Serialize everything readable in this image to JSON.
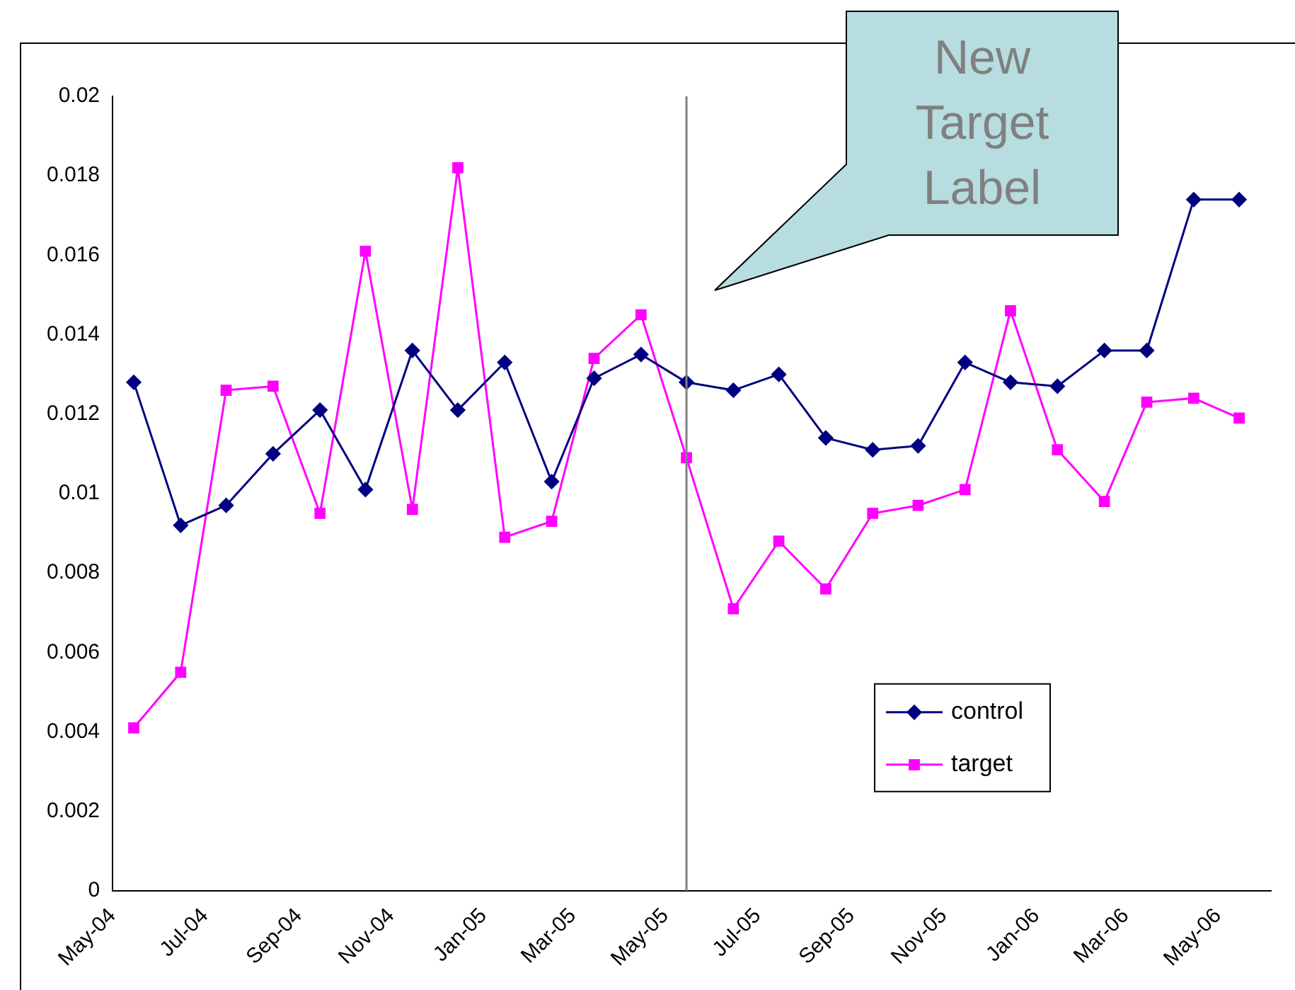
{
  "chart_data": {
    "type": "line",
    "x": [
      "2004-05-15",
      "2004-06-15",
      "2004-07-15",
      "2004-08-15",
      "2004-09-15",
      "2004-10-15",
      "2004-11-15",
      "2004-12-15",
      "2005-01-15",
      "2005-02-15",
      "2005-03-15",
      "2005-04-15",
      "2005-05-15",
      "2005-06-15",
      "2005-07-15",
      "2005-08-15",
      "2005-09-15",
      "2005-10-15",
      "2005-11-15",
      "2005-12-15",
      "2006-01-15",
      "2006-02-15",
      "2006-03-15",
      "2006-04-15",
      "2006-05-15"
    ],
    "series": [
      {
        "name": "control",
        "color": "#000080",
        "marker": "diamond",
        "values": [
          0.0128,
          0.0092,
          0.0097,
          0.011,
          0.0121,
          0.0101,
          0.0136,
          0.0121,
          0.0133,
          0.0103,
          0.0129,
          0.0135,
          0.0128,
          0.0126,
          0.013,
          0.0114,
          0.0111,
          0.0112,
          0.0133,
          0.0128,
          0.0127,
          0.0136,
          0.0136,
          0.0174,
          0.0174
        ]
      },
      {
        "name": "target",
        "color": "#ff00ff",
        "marker": "square",
        "values": [
          0.0041,
          0.0055,
          0.0126,
          0.0127,
          0.0095,
          0.0161,
          0.0096,
          0.0182,
          0.0089,
          0.0093,
          0.0134,
          0.0145,
          0.0109,
          0.0071,
          0.0088,
          0.0076,
          0.0095,
          0.0097,
          0.0101,
          0.0146,
          0.0111,
          0.0098,
          0.0123,
          0.0124,
          0.0119
        ]
      }
    ],
    "xlim": [
      "2004-05-01",
      "2006-06-05"
    ],
    "xticks": [
      {
        "value": "2004-05-01",
        "label": "May-04"
      },
      {
        "value": "2004-07-01",
        "label": "Jul-04"
      },
      {
        "value": "2004-09-01",
        "label": "Sep-04"
      },
      {
        "value": "2004-11-01",
        "label": "Nov-04"
      },
      {
        "value": "2005-01-01",
        "label": "Jan-05"
      },
      {
        "value": "2005-03-01",
        "label": "Mar-05"
      },
      {
        "value": "2005-05-01",
        "label": "May-05"
      },
      {
        "value": "2005-07-01",
        "label": "Jul-05"
      },
      {
        "value": "2005-09-01",
        "label": "Sep-05"
      },
      {
        "value": "2005-11-01",
        "label": "Nov-05"
      },
      {
        "value": "2006-01-01",
        "label": "Jan-06"
      },
      {
        "value": "2006-03-01",
        "label": "Mar-06"
      },
      {
        "value": "2006-05-01",
        "label": "May-06"
      }
    ],
    "ylim": [
      0,
      0.02
    ],
    "yticks": [
      0,
      0.002,
      0.004,
      0.006,
      0.008,
      0.01,
      0.012,
      0.014,
      0.016,
      0.018,
      0.02
    ],
    "ref_lines": [
      {
        "axis": "x",
        "value": "2005-05-15",
        "color": "#808080"
      }
    ],
    "annotations": [
      "New Target Label"
    ],
    "legend": "bottom right",
    "grid": false
  }
}
